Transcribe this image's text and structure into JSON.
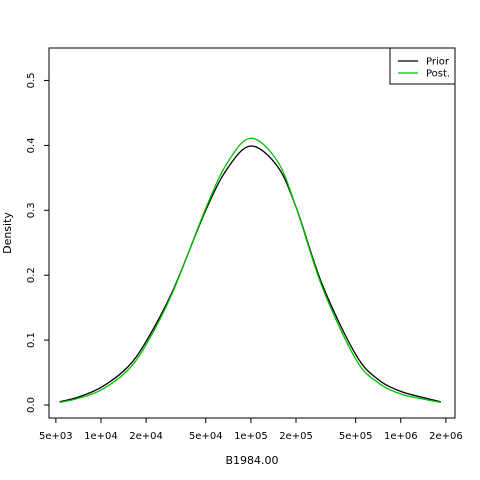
{
  "chart_data": {
    "type": "line",
    "xscale": "log",
    "xlabel": "B1984.00",
    "ylabel": "Density",
    "xlim": [
      4500,
      2300000
    ],
    "ylim": [
      -0.02,
      0.55
    ],
    "xticks": [
      {
        "value": 5000,
        "label": "5e+03"
      },
      {
        "value": 10000,
        "label": "1e+04"
      },
      {
        "value": 20000,
        "label": "2e+04"
      },
      {
        "value": 50000,
        "label": "5e+04"
      },
      {
        "value": 100000,
        "label": "1e+05"
      },
      {
        "value": 200000,
        "label": "2e+05"
      },
      {
        "value": 500000,
        "label": "5e+05"
      },
      {
        "value": 1000000,
        "label": "1e+06"
      },
      {
        "value": 2000000,
        "label": "2e+06"
      }
    ],
    "yticks": [
      {
        "value": 0.0,
        "label": "0.0"
      },
      {
        "value": 0.1,
        "label": "0.1"
      },
      {
        "value": 0.2,
        "label": "0.2"
      },
      {
        "value": 0.3,
        "label": "0.3"
      },
      {
        "value": 0.4,
        "label": "0.4"
      },
      {
        "value": 0.5,
        "label": "0.5"
      }
    ],
    "grid": false,
    "legend": {
      "position": "top-right"
    },
    "series": [
      {
        "name": "Prior",
        "color": "#000000",
        "x": [
          5300,
          7000,
          10000,
          15000,
          20000,
          30000,
          50000,
          70000,
          100000,
          150000,
          200000,
          300000,
          500000,
          700000,
          1000000,
          1500000,
          1850000
        ],
        "y": [
          0.005,
          0.012,
          0.027,
          0.058,
          0.098,
          0.175,
          0.3,
          0.365,
          0.399,
          0.368,
          0.305,
          0.185,
          0.078,
          0.04,
          0.021,
          0.01,
          0.005
        ]
      },
      {
        "name": "Post.",
        "color": "#00c000",
        "x": [
          5300,
          7000,
          10000,
          15000,
          20000,
          30000,
          50000,
          70000,
          100000,
          150000,
          200000,
          300000,
          500000,
          700000,
          1000000,
          1500000,
          1850000
        ],
        "y": [
          0.004,
          0.01,
          0.023,
          0.053,
          0.093,
          0.173,
          0.303,
          0.374,
          0.411,
          0.376,
          0.305,
          0.181,
          0.071,
          0.035,
          0.017,
          0.008,
          0.004
        ]
      }
    ]
  }
}
